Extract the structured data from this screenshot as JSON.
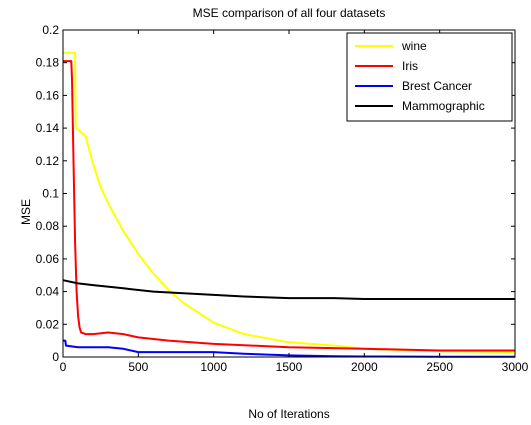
{
  "chart_data": {
    "type": "line",
    "title": "MSE comparison of all four datasets",
    "xlabel": "No of Iterations",
    "ylabel": "MSE",
    "xlim": [
      0,
      3000
    ],
    "ylim": [
      0,
      0.2
    ],
    "xticks": [
      0,
      500,
      1000,
      1500,
      2000,
      2500,
      3000
    ],
    "yticks": [
      0,
      0.02,
      0.04,
      0.06,
      0.08,
      0.1,
      0.12,
      0.14,
      0.16,
      0.18,
      0.2
    ],
    "xtick_labels": [
      "0",
      "500",
      "1000",
      "1500",
      "2000",
      "2500",
      "3000"
    ],
    "ytick_labels": [
      "0",
      "0.02",
      "0.04",
      "0.06",
      "0.08",
      "0.1",
      "0.12",
      "0.14",
      "0.16",
      "0.18",
      "0.2"
    ],
    "grid": false,
    "legend_position": "top-right",
    "series": [
      {
        "name": "wine",
        "color": "#ffff00",
        "x": [
          0,
          80,
          85,
          100,
          150,
          200,
          250,
          300,
          400,
          500,
          600,
          700,
          800,
          1000,
          1200,
          1500,
          1800,
          2000,
          2500,
          3000
        ],
        "y": [
          0.186,
          0.186,
          0.14,
          0.139,
          0.135,
          0.118,
          0.104,
          0.094,
          0.077,
          0.063,
          0.051,
          0.041,
          0.033,
          0.021,
          0.014,
          0.009,
          0.007,
          0.005,
          0.0035,
          0.003
        ]
      },
      {
        "name": "Iris",
        "color": "#ff0000",
        "x": [
          0,
          55,
          60,
          70,
          80,
          90,
          100,
          110,
          120,
          150,
          200,
          300,
          400,
          500,
          700,
          1000,
          1500,
          2000,
          2500,
          3000
        ],
        "y": [
          0.181,
          0.181,
          0.17,
          0.12,
          0.07,
          0.04,
          0.025,
          0.018,
          0.015,
          0.014,
          0.014,
          0.015,
          0.014,
          0.012,
          0.01,
          0.008,
          0.006,
          0.005,
          0.004,
          0.004
        ]
      },
      {
        "name": "Brest Cancer",
        "color": "#0000ff",
        "x": [
          0,
          15,
          20,
          100,
          300,
          400,
          500,
          800,
          1000,
          1200,
          1500,
          1800,
          2000,
          2500,
          3000
        ],
        "y": [
          0.01,
          0.01,
          0.007,
          0.006,
          0.006,
          0.005,
          0.003,
          0.003,
          0.003,
          0.002,
          0.001,
          0.0005,
          0.0003,
          0.0002,
          0.0002
        ]
      },
      {
        "name": "Mammographic",
        "color": "#000000",
        "x": [
          0,
          100,
          200,
          400,
          600,
          800,
          1000,
          1200,
          1500,
          1800,
          2000,
          2500,
          3000
        ],
        "y": [
          0.047,
          0.045,
          0.044,
          0.042,
          0.04,
          0.039,
          0.038,
          0.037,
          0.036,
          0.036,
          0.0355,
          0.0355,
          0.0355
        ]
      }
    ]
  }
}
